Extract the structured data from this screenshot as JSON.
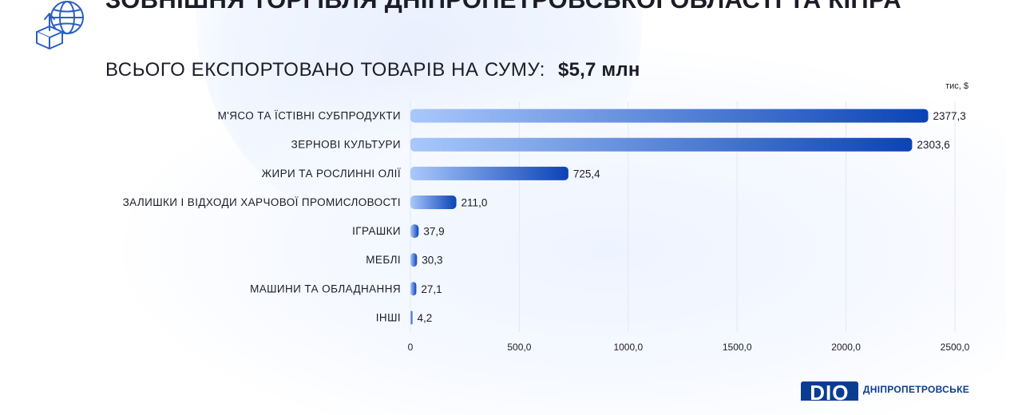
{
  "header": {
    "title": "ЗОВНІШНЯ ТОРГІВЛЯ ДНІПРОПЕТРОВСЬКОЇ ОБЛАСТІ ТА КІПРА",
    "subtitle": "ВСЬОГО ЕКСПОРТОВАНО ТОВАРІВ НА СУМУ:",
    "total": "$5,7 млн",
    "unit": "тис, $",
    "icon": "globe-export-box-icon"
  },
  "brand": {
    "mark": "DIO",
    "name": "ДНІПРОПЕТРОВСЬКЕ"
  },
  "colors": {
    "bar_start": "#a9c8fb",
    "bar_end": "#0b43b6",
    "grid": "#e3e8f0",
    "text": "#1c1c28",
    "brand": "#0a3d91"
  },
  "chart_data": {
    "type": "bar",
    "orientation": "horizontal",
    "categories": [
      "М'ЯСО ТА ЇСТІВНІ СУБПРОДУКТИ",
      "ЗЕРНОВІ КУЛЬТУРИ",
      "ЖИРИ ТА РОСЛИННІ ОЛІЇ",
      "ЗАЛИШКИ І ВІДХОДИ ХАРЧОВОЇ ПРОМИСЛОВОСТІ",
      "ІГРАШКИ",
      "МЕБЛІ",
      "МАШИНИ ТА ОБЛАДНАННЯ",
      "ІНШІ"
    ],
    "values": [
      2377.3,
      2303.6,
      725.4,
      211.0,
      37.9,
      30.3,
      27.1,
      4.2
    ],
    "value_labels": [
      "2377,3",
      "2303,6",
      "725,4",
      "211,0",
      "37,9",
      "30,3",
      "27,1",
      "4,2"
    ],
    "xlim": [
      0,
      2500
    ],
    "xticks": [
      0,
      500,
      1000,
      1500,
      2000,
      2500
    ],
    "xtick_labels": [
      "0",
      "500,0",
      "1000,0",
      "1500,0",
      "2000,0",
      "2500,0"
    ],
    "grid": true,
    "legend": false
  }
}
